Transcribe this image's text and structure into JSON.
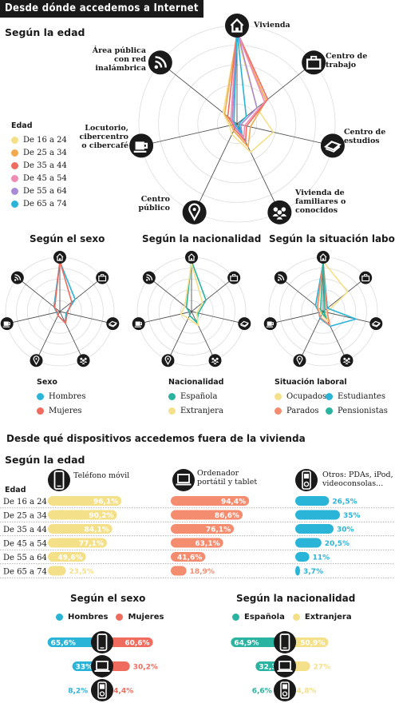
{
  "title": "Desde dónde accedemos a Internet",
  "section1": {
    "edad_heading": "Según la edad"
  },
  "radar_axes": [
    "Vivienda",
    "Centro de trabajo",
    "Centro de estudios",
    "Vivienda de familiares o conocidos",
    "Centro público",
    "Locutorio, cibercentro o cibercafé",
    "Área pública con red inalámbrica"
  ],
  "radar_icons": [
    "home-icon",
    "briefcase-icon",
    "book-icon",
    "people-icon",
    "location-pin-icon",
    "coffee-cup-icon",
    "wifi-icon"
  ],
  "small_headings": [
    "Según el sexo",
    "Según la nacionalidad",
    "Según la situación laboral"
  ],
  "edad_legend": {
    "title": "Edad",
    "items": [
      {
        "label": "De 16 a 24",
        "color": "#f5e08a"
      },
      {
        "label": "De 25 a 34",
        "color": "#f2a94e"
      },
      {
        "label": "De 35 a 44",
        "color": "#ef6b5e"
      },
      {
        "label": "De 45 a 54",
        "color": "#f08bb4"
      },
      {
        "label": "De 55 a 64",
        "color": "#a98ad6"
      },
      {
        "label": "De 65 a 74",
        "color": "#2ab4d8"
      }
    ]
  },
  "sexo_legend": {
    "title": "Sexo",
    "items": [
      {
        "label": "Hombres",
        "color": "#2ab4d8"
      },
      {
        "label": "Mujeres",
        "color": "#ef6b5e"
      }
    ]
  },
  "nac_legend": {
    "title": "Nacionalidad",
    "items": [
      {
        "label": "Española",
        "color": "#2ab3a0"
      },
      {
        "label": "Extranjera",
        "color": "#f5e08a"
      }
    ]
  },
  "lab_legend": {
    "title": "Situación laboral",
    "items": [
      {
        "label": "Ocupados",
        "color": "#f5e08a"
      },
      {
        "label": "Estudiantes",
        "color": "#2ab4d8"
      },
      {
        "label": "Parados",
        "color": "#f48c70"
      },
      {
        "label": "Pensionistas",
        "color": "#2ab3a0"
      }
    ]
  },
  "section2": {
    "heading": "Desde qué dispositivos accedemos fuera de la vivienda",
    "edad_heading": "Según la edad",
    "edad_col": "Edad",
    "device_labels": [
      "Teléfono móvil",
      "Ordenador portátil y tablet",
      "Otros: PDAs, iPod, videoconsolas..."
    ],
    "sexo_heading": "Según el sexo",
    "nac_heading": "Según la nacionalidad"
  },
  "chart_data": [
    {
      "type": "radar",
      "title": "Según la edad",
      "categories": [
        "Vivienda",
        "Centro de trabajo",
        "Centro de estudios",
        "Vivienda de familiares o conocidos",
        "Centro público",
        "Locutorio, cibercentro o cibercafé",
        "Área pública con red inalámbrica"
      ],
      "series": [
        {
          "name": "De 16 a 24",
          "values": [
            90,
            26,
            38,
            32,
            12,
            8,
            18
          ]
        },
        {
          "name": "De 25 a 34",
          "values": [
            92,
            38,
            14,
            26,
            8,
            6,
            16
          ]
        },
        {
          "name": "De 35 a 44",
          "values": [
            94,
            40,
            10,
            20,
            6,
            4,
            12
          ]
        },
        {
          "name": "De 45 a 54",
          "values": [
            94,
            36,
            8,
            16,
            4,
            3,
            8
          ]
        },
        {
          "name": "De 55 a 64",
          "values": [
            95,
            26,
            4,
            12,
            4,
            2,
            6
          ]
        },
        {
          "name": "De 65 a 74",
          "values": [
            95,
            12,
            2,
            10,
            2,
            2,
            4
          ]
        }
      ],
      "rmax": 100
    },
    {
      "type": "radar",
      "title": "Según el sexo",
      "categories": [
        "Vivienda",
        "Centro de trabajo",
        "Centro de estudios",
        "Vivienda de familiares o conocidos",
        "Centro público",
        "Locutorio, cibercentro o cibercafé",
        "Área pública con red inalámbrica"
      ],
      "series": [
        {
          "name": "Hombres",
          "values": [
            92,
            36,
            12,
            22,
            8,
            6,
            14
          ]
        },
        {
          "name": "Mujeres",
          "values": [
            93,
            28,
            14,
            24,
            8,
            5,
            12
          ]
        }
      ],
      "rmax": 100
    },
    {
      "type": "radar",
      "title": "Según la nacionalidad",
      "categories": [
        "Vivienda",
        "Centro de trabajo",
        "Centro de estudios",
        "Vivienda de familiares o conocidos",
        "Centro público",
        "Locutorio, cibercentro o cibercafé",
        "Área pública con red inalámbrica"
      ],
      "series": [
        {
          "name": "Española",
          "values": [
            93,
            34,
            13,
            22,
            8,
            4,
            12
          ]
        },
        {
          "name": "Extranjera",
          "values": [
            88,
            26,
            10,
            28,
            14,
            20,
            16
          ]
        }
      ],
      "rmax": 100
    },
    {
      "type": "radar",
      "title": "Según la situación laboral",
      "categories": [
        "Vivienda",
        "Centro de trabajo",
        "Centro de estudios",
        "Vivienda de familiares o conocidos",
        "Centro público",
        "Locutorio, cibercentro o cibercafé",
        "Área pública con red inalámbrica"
      ],
      "series": [
        {
          "name": "Ocupados",
          "values": [
            92,
            58,
            6,
            20,
            6,
            4,
            12
          ]
        },
        {
          "name": "Estudiantes",
          "values": [
            90,
            10,
            62,
            30,
            14,
            8,
            18
          ]
        },
        {
          "name": "Parados",
          "values": [
            92,
            8,
            8,
            28,
            12,
            8,
            14
          ]
        },
        {
          "name": "Pensionistas",
          "values": [
            95,
            4,
            2,
            12,
            4,
            2,
            6
          ]
        }
      ],
      "rmax": 100
    },
    {
      "type": "bar",
      "title": "Según la edad",
      "categories": [
        "De 16 a 24",
        "De 25 a 34",
        "De 35 a 44",
        "De 45 a 54",
        "De 55 a 64",
        "De 65 a 74"
      ],
      "series": [
        {
          "name": "Teléfono móvil",
          "values": [
            96.1,
            90.2,
            84.1,
            77.1,
            49.6,
            23.5
          ],
          "labels": [
            "96,1%",
            "90,2%",
            "84,1%",
            "77,1%",
            "49,6%",
            "23,5%"
          ],
          "color": "#f5e08a"
        },
        {
          "name": "Ordenador portátil y tablet",
          "values": [
            94.4,
            86.6,
            76.1,
            63.1,
            41.6,
            18.9
          ],
          "labels": [
            "94,4%",
            "86,6%",
            "76,1%",
            "63,1%",
            "41,6%",
            "18,9%"
          ],
          "color": "#f48c70"
        },
        {
          "name": "Otros: PDAs, iPod, videoconsolas...",
          "values": [
            26.5,
            35,
            30,
            20.5,
            11,
            3.7
          ],
          "labels": [
            "26,5%",
            "35%",
            "30%",
            "20,5%",
            "11%",
            "3,7%"
          ],
          "color": "#2ab4d8"
        }
      ]
    },
    {
      "type": "bar",
      "title": "Según el sexo",
      "categories": [
        "Teléfono móvil",
        "Ordenador portátil y tablet",
        "Otros: PDAs, iPod, videoconsolas..."
      ],
      "series": [
        {
          "name": "Hombres",
          "values": [
            65.6,
            33,
            8.2
          ],
          "labels": [
            "65,6%",
            "33%",
            "8,2%"
          ],
          "color": "#2ab4d8"
        },
        {
          "name": "Mujeres",
          "values": [
            60.6,
            30.2,
            4.4
          ],
          "labels": [
            "60,6%",
            "30,2%",
            "4,4%"
          ],
          "color": "#ef6b5e"
        }
      ]
    },
    {
      "type": "bar",
      "title": "Según la nacionalidad",
      "categories": [
        "Teléfono móvil",
        "Ordenador portátil y tablet",
        "Otros: PDAs, iPod, videoconsolas..."
      ],
      "series": [
        {
          "name": "Española",
          "values": [
            64.9,
            32.3,
            6.6
          ],
          "labels": [
            "64,9%",
            "32,3%",
            "6,6%"
          ],
          "color": "#2ab3a0"
        },
        {
          "name": "Extranjera",
          "values": [
            50.9,
            27,
            4.8
          ],
          "labels": [
            "50,9%",
            "27%",
            "4,8%"
          ],
          "color": "#f5e08a"
        }
      ]
    }
  ]
}
